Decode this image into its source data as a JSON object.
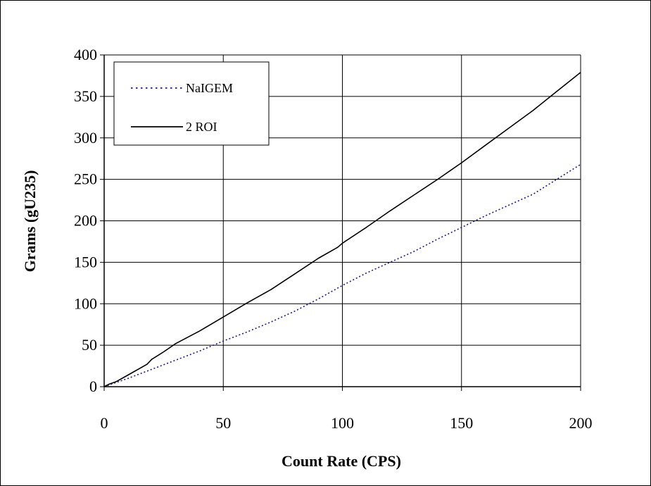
{
  "chart_data": {
    "type": "line",
    "title": "",
    "xlabel": "Count Rate (CPS)",
    "ylabel": "Grams (gU235)",
    "xlim": [
      0,
      200
    ],
    "ylim": [
      0,
      400
    ],
    "xticks": [
      0,
      50,
      100,
      150,
      200
    ],
    "yticks": [
      0,
      50,
      100,
      150,
      200,
      250,
      300,
      350,
      400
    ],
    "grid": true,
    "legend_position": "top-left",
    "series": [
      {
        "name": "NaIGEM",
        "style": "dotted",
        "color": "#1a1a8c",
        "x": [
          0,
          2,
          5,
          10,
          20,
          30,
          40,
          50,
          60,
          70,
          80,
          90,
          100,
          110,
          120,
          130,
          140,
          150,
          160,
          170,
          180,
          190,
          200
        ],
        "y": [
          0,
          2,
          5,
          10,
          21,
          32,
          43,
          55,
          66,
          78,
          91,
          106,
          122,
          137,
          150,
          163,
          178,
          192,
          206,
          219,
          232,
          250,
          268
        ]
      },
      {
        "name": "2 ROI",
        "style": "solid",
        "color": "#000000",
        "x": [
          0,
          2,
          5,
          10,
          18,
          20,
          25,
          30,
          40,
          50,
          60,
          70,
          80,
          90,
          98,
          100,
          110,
          120,
          130,
          140,
          150,
          160,
          170,
          180,
          190,
          200
        ],
        "y": [
          0,
          3,
          6,
          14,
          27,
          33,
          42,
          52,
          67,
          84,
          101,
          117,
          136,
          155,
          168,
          173,
          192,
          212,
          231,
          250,
          270,
          291,
          312,
          333,
          356,
          379
        ]
      }
    ]
  }
}
